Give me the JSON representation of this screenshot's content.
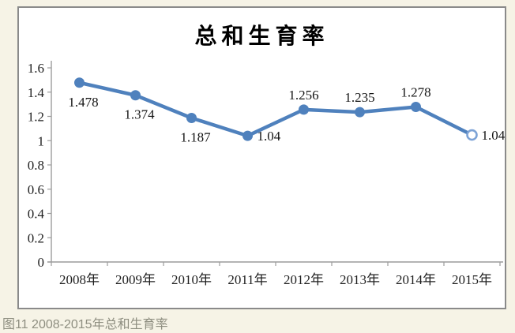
{
  "caption": "图11 2008-2015年总和生育率",
  "colors": {
    "page_background": "#f6f3e6",
    "chart_background": "#ffffff",
    "chart_border": "#8a8a8a",
    "axis": "#9c9c9c",
    "line": "#4f81bd",
    "marker_open_ring": "#7da3d6",
    "caption_text": "#8e8e80",
    "label_text": "#141414"
  },
  "chart_data": {
    "type": "line",
    "title": "总和生育率",
    "categories": [
      "2008年",
      "2009年",
      "2010年",
      "2011年",
      "2012年",
      "2013年",
      "2014年",
      "2015年"
    ],
    "values": [
      1.478,
      1.374,
      1.187,
      1.04,
      1.256,
      1.235,
      1.278,
      1.047
    ],
    "point_labels": [
      "1.478",
      "1.374",
      "1.187",
      "1.04",
      "1.256",
      "1.235",
      "1.278",
      "1.047"
    ],
    "label_positions": [
      "below",
      "below",
      "below",
      "right",
      "above",
      "above",
      "above",
      "right"
    ],
    "marker_styles": [
      "filled",
      "filled",
      "filled",
      "filled",
      "filled",
      "filled",
      "filled",
      "open"
    ],
    "xlabel": "",
    "ylabel": "",
    "ylim": [
      0,
      1.6
    ],
    "yticks": [
      0,
      0.2,
      0.4,
      0.6,
      0.8,
      1,
      1.2,
      1.4,
      1.6
    ],
    "ytick_labels": [
      "0",
      "0.2",
      "0.4",
      "0.6",
      "0.8",
      "1",
      "1.2",
      "1.4",
      "1.6"
    ],
    "grid": false,
    "legend": "none"
  }
}
